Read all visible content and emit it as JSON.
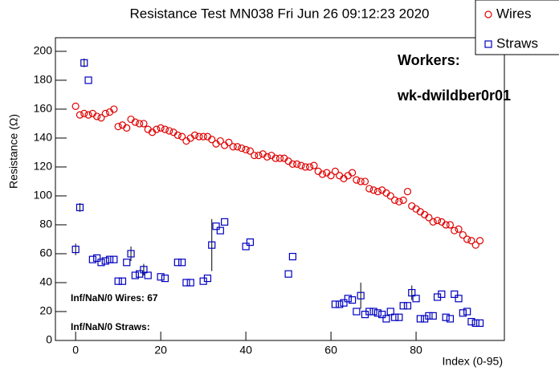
{
  "chart_data": {
    "type": "scatter",
    "title": "Resistance Test MN038 Fri Jun 26 09:12:23 2020",
    "x_label": "Index (0-95)",
    "y_label": "Resistance (Ω)",
    "annotations": [
      "Inf/NaN/0 Wires: 67",
      "Inf/NaN/0 Straws:",
      "Workers:",
      "wk-dwildber0r01"
    ],
    "xlim": [
      -4.75,
      100.75
    ],
    "xticks": [
      0,
      20,
      40,
      60,
      80
    ],
    "ylim": [
      0,
      209.4
    ],
    "yticks": [
      0,
      20,
      40,
      60,
      80,
      100,
      120,
      140,
      160,
      180,
      200
    ],
    "x": [
      0,
      1,
      2,
      3,
      4,
      5,
      6,
      7,
      8,
      9,
      10,
      11,
      12,
      13,
      14,
      15,
      16,
      17,
      18,
      19,
      20,
      21,
      22,
      23,
      24,
      25,
      26,
      27,
      28,
      29,
      30,
      31,
      32,
      33,
      34,
      35,
      36,
      37,
      38,
      39,
      40,
      41,
      42,
      43,
      44,
      45,
      46,
      47,
      48,
      49,
      50,
      51,
      52,
      53,
      54,
      55,
      56,
      57,
      58,
      59,
      60,
      61,
      62,
      63,
      64,
      65,
      66,
      67,
      68,
      69,
      70,
      71,
      72,
      73,
      74,
      75,
      76,
      77,
      78,
      79,
      80,
      81,
      82,
      83,
      84,
      85,
      86,
      87,
      88,
      89,
      90,
      91,
      92,
      93,
      94,
      95
    ],
    "series": [
      {
        "name": "Wires",
        "color": "#e00000",
        "marker": "circle",
        "values": [
          162,
          156,
          157,
          156,
          157,
          155,
          154,
          157,
          158,
          160,
          148,
          149,
          147,
          153,
          151,
          150,
          150,
          146,
          144,
          146,
          147,
          146,
          145,
          144,
          142,
          141,
          138,
          140,
          142,
          141,
          141,
          141,
          139,
          136,
          138,
          135,
          137,
          134,
          134,
          133,
          132,
          131,
          128,
          128,
          129,
          127,
          128,
          126,
          126,
          126,
          124,
          122,
          122,
          121,
          120,
          120,
          121,
          117,
          115,
          116,
          114,
          117,
          114,
          112,
          114,
          116,
          111,
          110,
          110,
          105,
          104,
          103,
          104,
          102,
          100,
          97,
          96,
          97,
          103,
          93,
          91,
          89,
          87,
          85,
          82,
          83,
          82,
          80,
          80,
          76,
          77,
          73,
          70,
          69,
          66,
          69
        ]
      },
      {
        "name": "Straws",
        "color": "#0000c0",
        "marker": "square",
        "values": [
          63,
          92,
          192,
          180,
          56,
          57,
          54,
          55,
          56,
          56,
          41,
          41,
          54,
          60,
          45,
          46,
          49,
          45,
          null,
          null,
          44,
          43,
          null,
          null,
          54,
          54,
          40,
          40,
          null,
          null,
          41,
          43,
          66,
          79,
          76,
          82,
          null,
          null,
          null,
          null,
          65,
          68,
          null,
          null,
          null,
          null,
          null,
          null,
          null,
          null,
          46,
          58,
          null,
          null,
          null,
          null,
          null,
          null,
          null,
          null,
          null,
          25,
          25,
          26,
          29,
          28,
          20,
          31,
          18,
          20,
          20,
          19,
          18,
          15,
          20,
          16,
          16,
          24,
          24,
          33,
          29,
          15,
          15,
          17,
          17,
          30,
          32,
          16,
          15,
          32,
          29,
          19,
          20,
          13,
          12,
          12
        ],
        "errors": [
          4,
          3,
          3,
          null,
          null,
          null,
          null,
          null,
          null,
          null,
          null,
          null,
          null,
          5,
          null,
          null,
          4,
          null,
          null,
          null,
          null,
          null,
          null,
          null,
          null,
          null,
          null,
          null,
          null,
          null,
          null,
          null,
          18,
          null,
          null,
          null,
          null,
          null,
          null,
          null,
          null,
          null,
          null,
          null,
          null,
          null,
          null,
          null,
          null,
          null,
          null,
          null,
          null,
          null,
          null,
          null,
          null,
          null,
          null,
          null,
          null,
          null,
          null,
          null,
          null,
          null,
          null,
          9,
          null,
          null,
          null,
          null,
          null,
          null,
          null,
          null,
          null,
          null,
          null,
          5,
          null,
          null,
          null,
          null,
          null,
          null,
          null,
          null,
          null,
          null,
          null,
          null,
          null,
          null,
          null,
          null
        ]
      }
    ]
  }
}
